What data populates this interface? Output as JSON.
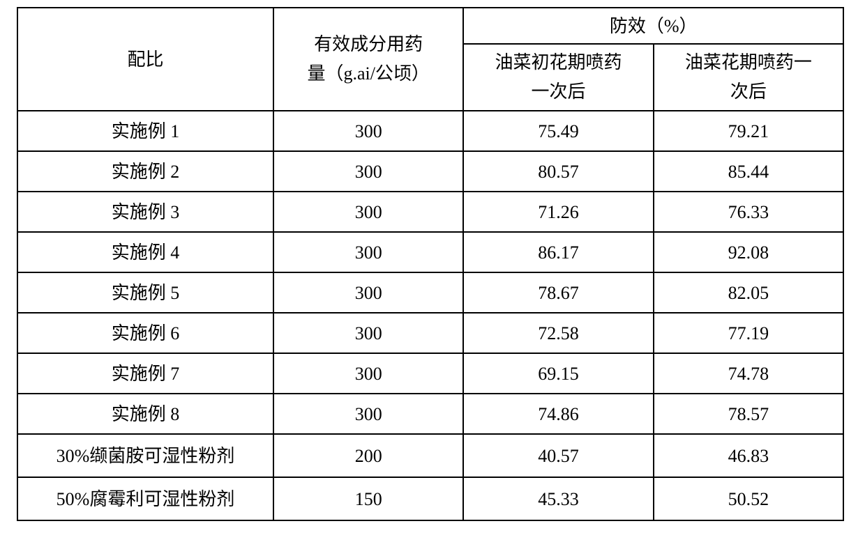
{
  "table": {
    "columns": {
      "ratio": "配比",
      "dosage": "有效成分用药",
      "dosage_unit": "量（g.ai/公顷）",
      "efficacy": "防效（%）",
      "sub1_line1": "油菜初花期喷药",
      "sub1_line2": "一次后",
      "sub2_line1": "油菜花期喷药一",
      "sub2_line2": "次后"
    },
    "rows": [
      {
        "ratio": "实施例 1",
        "dosage": "300",
        "v1": "75.49",
        "v2": "79.21"
      },
      {
        "ratio": "实施例 2",
        "dosage": "300",
        "v1": "80.57",
        "v2": "85.44"
      },
      {
        "ratio": "实施例 3",
        "dosage": "300",
        "v1": "71.26",
        "v2": "76.33"
      },
      {
        "ratio": "实施例 4",
        "dosage": "300",
        "v1": "86.17",
        "v2": "92.08"
      },
      {
        "ratio": "实施例 5",
        "dosage": "300",
        "v1": "78.67",
        "v2": "82.05"
      },
      {
        "ratio": "实施例 6",
        "dosage": "300",
        "v1": "72.58",
        "v2": "77.19"
      },
      {
        "ratio": "实施例 7",
        "dosage": "300",
        "v1": "69.15",
        "v2": "74.78"
      },
      {
        "ratio": "实施例 8",
        "dosage": "300",
        "v1": "74.86",
        "v2": "78.57"
      },
      {
        "ratio": "30%缬菌胺可湿性粉剂",
        "dosage": "200",
        "v1": "40.57",
        "v2": "46.83"
      },
      {
        "ratio": "50%腐霉利可湿性粉剂",
        "dosage": "150",
        "v1": "45.33",
        "v2": "50.52"
      }
    ]
  },
  "style": {
    "border_color": "#000000",
    "text_color": "#000000",
    "background_color": "#ffffff",
    "font_size_pt": 20
  }
}
